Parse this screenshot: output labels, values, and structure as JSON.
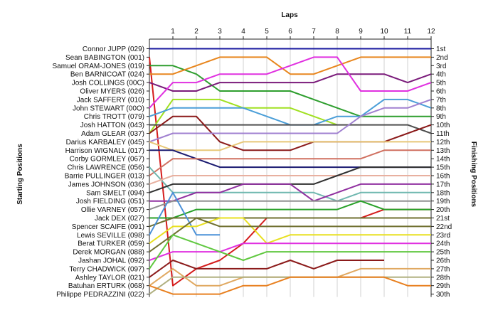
{
  "chart_data": {
    "type": "line",
    "title": "",
    "xlabel": "Laps",
    "ylabel_left": "Starting Positions",
    "ylabel_right": "Finishing Positions",
    "laps": [
      1,
      2,
      3,
      4,
      5,
      6,
      7,
      8,
      9,
      10,
      11,
      12
    ],
    "xlim": [
      0,
      12
    ],
    "ylim": [
      1,
      30
    ],
    "y_inverted": true,
    "grid": "vertical",
    "finishing_labels": [
      "1st",
      "2nd",
      "3rd",
      "4th",
      "5th",
      "6th",
      "7th",
      "8th",
      "9th",
      "10th",
      "11th",
      "12th",
      "13th",
      "14th",
      "15th",
      "16th",
      "17th",
      "18th",
      "19th",
      "20th",
      "21st",
      "22nd",
      "23rd",
      "24th",
      "25th",
      "26th",
      "27th",
      "28th",
      "29th",
      "30th"
    ],
    "series": [
      {
        "name": "Connor JUPP (029)",
        "color": "#1a1aa0",
        "positions": [
          1,
          1,
          1,
          1,
          1,
          1,
          1,
          1,
          1,
          1,
          1,
          1,
          1
        ]
      },
      {
        "name": "Sean BABINGTON (001)",
        "color": "#d41c1c",
        "positions": [
          2,
          29,
          27,
          26,
          24,
          21,
          21,
          21,
          21,
          21,
          20,
          20,
          20
        ]
      },
      {
        "name": "Samuel ORAM-JONES (019)",
        "color": "#2e9e2e",
        "positions": [
          3,
          3,
          4,
          6,
          6,
          6,
          6,
          7,
          8,
          9,
          9,
          9,
          9
        ]
      },
      {
        "name": "Ben BARNICOAT (024)",
        "color": "#e8861e",
        "positions": [
          4,
          4,
          3,
          2,
          2,
          2,
          4,
          4,
          3,
          2,
          2,
          2,
          2
        ]
      },
      {
        "name": "Josh COLLINGS (00C)",
        "color": "#7a1a7a",
        "positions": [
          5,
          6,
          6,
          5,
          5,
          5,
          5,
          5,
          4,
          4,
          4,
          5,
          4
        ]
      },
      {
        "name": "Oliver MYERS (026)",
        "color": "#e030e0",
        "positions": [
          8,
          5,
          5,
          4,
          4,
          4,
          3,
          2,
          2,
          6,
          6,
          6,
          5
        ]
      },
      {
        "name": "Jack SAFFERY (010)",
        "color": "#a0e020",
        "positions": [
          11,
          7,
          7,
          7,
          8,
          8,
          8,
          9,
          10,
          null,
          null,
          null,
          null
        ]
      },
      {
        "name": "John STEWART (00O)",
        "color": "#4a9ed8",
        "positions": [
          9,
          8,
          8,
          8,
          8,
          9,
          10,
          10,
          9,
          9,
          7,
          7,
          8
        ]
      },
      {
        "name": "Chris TROTT (079)",
        "color": "#505050",
        "positions": [
          10,
          10,
          10,
          10,
          10,
          10,
          10,
          10,
          10,
          10,
          10,
          10,
          11
        ]
      },
      {
        "name": "Josh HATTON (043)",
        "color": "#8b1a1a",
        "positions": [
          11,
          9,
          9,
          12,
          13,
          13,
          13,
          12,
          12,
          12,
          12,
          11,
          10
        ]
      },
      {
        "name": "Adam GLEAR (037)",
        "color": "#a080d0",
        "positions": [
          12,
          11,
          11,
          11,
          11,
          11,
          11,
          11,
          11,
          9,
          8,
          8,
          7
        ]
      },
      {
        "name": "Darius KARBALEY (045)",
        "color": "#e8c878",
        "positions": [
          12,
          13,
          13,
          13,
          12,
          12,
          12,
          12,
          12,
          12,
          12,
          12,
          12
        ]
      },
      {
        "name": "Harrison WIGNALL (017)",
        "color": "#1a1a70",
        "positions": [
          13,
          13,
          14,
          15,
          15,
          15,
          15,
          15,
          15,
          15,
          15,
          15,
          15
        ]
      },
      {
        "name": "Corby GORMLEY (067)",
        "color": "#d07060",
        "positions": [
          16,
          14,
          14,
          14,
          14,
          14,
          14,
          14,
          14,
          14,
          13,
          13,
          13
        ]
      },
      {
        "name": "Chris LAWRENCE (056)",
        "color": "#70b8b0",
        "positions": [
          15,
          18,
          18,
          18,
          18,
          18,
          18,
          18,
          19,
          18,
          18,
          18,
          18
        ]
      },
      {
        "name": "Barrie PULLINGER (013)",
        "color": "#e8b0a0",
        "positions": [
          17,
          16,
          16,
          16,
          16,
          16,
          16,
          16,
          16,
          16,
          16,
          16,
          16
        ]
      },
      {
        "name": "James JOHNSON (036)",
        "color": "#303030",
        "positions": [
          18,
          17,
          17,
          17,
          17,
          17,
          17,
          17,
          16,
          15,
          15,
          15,
          15
        ]
      },
      {
        "name": "Sam SMELT (094)",
        "color": "#9030a0",
        "positions": [
          19,
          19,
          18,
          18,
          17,
          17,
          17,
          19,
          18,
          17,
          17,
          17,
          17
        ]
      },
      {
        "name": "Josh FIELDING (051)",
        "color": "#909090",
        "positions": [
          20,
          19,
          19,
          19,
          19,
          19,
          19,
          19,
          19,
          19,
          19,
          19,
          19
        ]
      },
      {
        "name": "Ollie VARNEY (057)",
        "color": "#28a028",
        "positions": [
          21,
          21,
          20,
          20,
          20,
          20,
          20,
          20,
          20,
          19,
          20,
          20,
          20
        ]
      },
      {
        "name": "Jack DEX (027)",
        "color": "#707030",
        "positions": [
          22,
          21,
          21,
          21,
          21,
          21,
          21,
          21,
          21,
          21,
          21,
          21,
          21
        ]
      },
      {
        "name": "Spencer SCAIFE (091)",
        "color": "#4a90d8",
        "positions": [
          23,
          18,
          23,
          23,
          null,
          null,
          null,
          null,
          null,
          null,
          null,
          null,
          null
        ]
      },
      {
        "name": "Lewis SEVILLE (098)",
        "color": "#e8e020",
        "positions": [
          24,
          22,
          22,
          21,
          21,
          24,
          23,
          23,
          23,
          23,
          23,
          23,
          23
        ]
      },
      {
        "name": "Berat TURKER (059)",
        "color": "#707030",
        "positions": [
          25,
          23,
          21,
          22,
          22,
          22,
          22,
          22,
          22,
          22,
          22,
          22,
          22
        ]
      },
      {
        "name": "Derek MORGAN (088)",
        "color": "#e030e0",
        "positions": [
          26,
          25,
          25,
          25,
          24,
          24,
          24,
          24,
          24,
          24,
          24,
          24,
          24
        ]
      },
      {
        "name": "Jashan JOHAL (092)",
        "color": "#60c840",
        "positions": [
          27,
          23,
          24,
          25,
          26,
          25,
          25,
          25,
          25,
          25,
          25,
          25,
          25
        ]
      },
      {
        "name": "Terry CHADWICK (097)",
        "color": "#8b1a1a",
        "positions": [
          28,
          26,
          27,
          27,
          27,
          27,
          26,
          27,
          26,
          26,
          26,
          null,
          null
        ]
      },
      {
        "name": "Ashley TAYLOR (021)",
        "color": "#e0a860",
        "positions": [
          29,
          27,
          29,
          29,
          28,
          28,
          28,
          28,
          28,
          27,
          27,
          27,
          27
        ]
      },
      {
        "name": "Batuhan ERTURK (068)",
        "color": "#b0b080",
        "positions": [
          30,
          28,
          28,
          28,
          28,
          28,
          28,
          28,
          28,
          28,
          28,
          28,
          28
        ]
      },
      {
        "name": "Philippe PEDRAZZINI (022)",
        "color": "#e88020",
        "positions": [
          29,
          30,
          30,
          30,
          29,
          29,
          28,
          28,
          28,
          28,
          28,
          29,
          29
        ]
      }
    ]
  }
}
